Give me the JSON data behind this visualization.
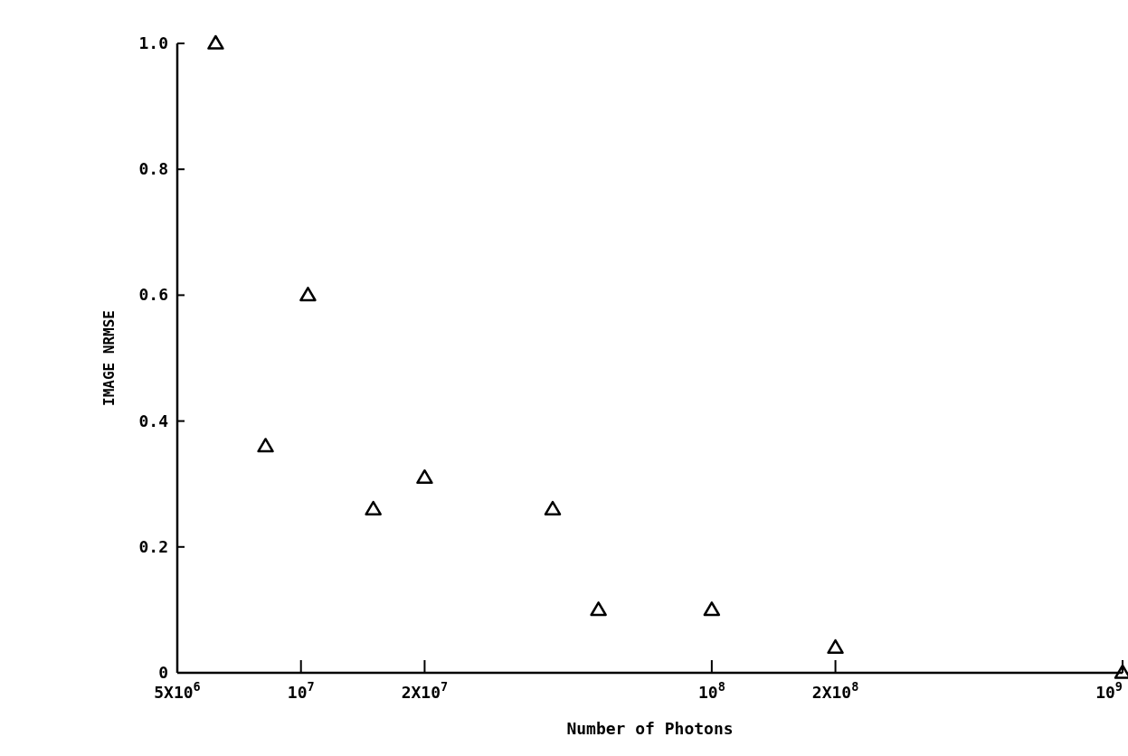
{
  "chart_data": {
    "type": "scatter",
    "xlabel": "Number of Photons",
    "ylabel": "IMAGE NRMSE",
    "log": "x",
    "marker": "triangle",
    "grid": false,
    "x": [
      6200000,
      8200000,
      10400000,
      15000000,
      20000000,
      41000000,
      53000000,
      100000000,
      200000000,
      1000000000
    ],
    "series": [
      {
        "color": "#000000",
        "values": [
          1.0,
          0.36,
          0.6,
          0.26,
          0.31,
          0.26,
          0.1,
          0.1,
          0.04,
          0.0
        ]
      }
    ],
    "xlim": [
      5000000,
      1000000000
    ],
    "xticks": [
      {
        "value": 5000000,
        "label": "5X10$^{6}$"
      },
      {
        "value": 10000000,
        "label": "10$^{7}$"
      },
      {
        "value": 20000000,
        "label": "2X10$^{7}$"
      },
      {
        "value": 100000000,
        "label": "10$^{8}$"
      },
      {
        "value": 200000000,
        "label": "2X10$^{8}$"
      },
      {
        "value": 1000000000,
        "label": "10$^{9}$"
      }
    ],
    "ylim": [
      0,
      1.0
    ],
    "yticks": [
      0,
      0.2,
      0.4,
      0.6,
      0.8,
      {
        "value": 1,
        "label": "1.0"
      }
    ]
  }
}
